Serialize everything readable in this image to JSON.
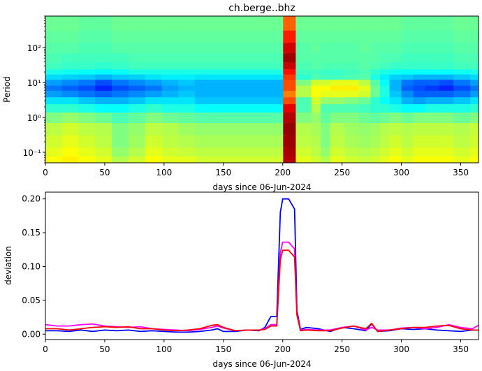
{
  "chart_data": [
    {
      "type": "heatmap",
      "title": "ch.berge..bhz",
      "xlabel": "days since 06-Jun-2024",
      "ylabel": "Period",
      "xlim": [
        0,
        365
      ],
      "ylim": [
        0.05,
        800
      ],
      "y_scale": "log",
      "x_ticks": [
        "0",
        "50",
        "100",
        "150",
        "200",
        "250",
        "300",
        "350"
      ],
      "y_ticks": [
        "10⁻¹",
        "10⁰",
        "10¹",
        "10²"
      ],
      "colormap": "jet",
      "band_periods": [
        0.06,
        0.1,
        0.2,
        0.5,
        1,
        2,
        3,
        5,
        7,
        10,
        15,
        20,
        30,
        50,
        100,
        200,
        500
      ],
      "rows": [
        {
          "period": 0.06,
          "values": [
            0.62,
            0.64,
            0.62,
            0.6,
            0.55,
            0.58,
            0.62,
            0.6,
            0.6,
            0.58,
            0.95,
            0.6,
            0.58,
            0.55,
            0.6,
            0.58,
            0.57,
            0.58,
            0.6,
            0.62,
            0.6,
            0.62,
            0.62,
            0.62,
            0.6,
            0.62
          ]
        },
        {
          "period": 0.1,
          "values": [
            0.6,
            0.62,
            0.6,
            0.58,
            0.52,
            0.55,
            0.6,
            0.58,
            0.57,
            0.56,
            0.96,
            0.58,
            0.56,
            0.52,
            0.58,
            0.56,
            0.55,
            0.56,
            0.58,
            0.6,
            0.58,
            0.6,
            0.6,
            0.6,
            0.58,
            0.6
          ]
        },
        {
          "period": 0.2,
          "values": [
            0.58,
            0.6,
            0.58,
            0.56,
            0.5,
            0.53,
            0.58,
            0.56,
            0.55,
            0.54,
            0.97,
            0.56,
            0.55,
            0.5,
            0.56,
            0.54,
            0.53,
            0.54,
            0.56,
            0.58,
            0.56,
            0.58,
            0.58,
            0.58,
            0.56,
            0.58
          ]
        },
        {
          "period": 0.5,
          "values": [
            0.56,
            0.58,
            0.56,
            0.55,
            0.5,
            0.52,
            0.56,
            0.55,
            0.53,
            0.52,
            0.98,
            0.55,
            0.54,
            0.5,
            0.55,
            0.53,
            0.52,
            0.53,
            0.55,
            0.56,
            0.55,
            0.56,
            0.56,
            0.56,
            0.55,
            0.57
          ]
        },
        {
          "period": 1,
          "values": [
            0.5,
            0.52,
            0.5,
            0.48,
            0.45,
            0.47,
            0.5,
            0.48,
            0.47,
            0.46,
            0.95,
            0.5,
            0.52,
            0.47,
            0.5,
            0.5,
            0.48,
            0.47,
            0.48,
            0.5,
            0.48,
            0.5,
            0.5,
            0.5,
            0.48,
            0.5
          ]
        },
        {
          "period": 2,
          "values": [
            0.42,
            0.42,
            0.4,
            0.38,
            0.38,
            0.4,
            0.42,
            0.4,
            0.4,
            0.38,
            0.9,
            0.45,
            0.55,
            0.45,
            0.45,
            0.45,
            0.44,
            0.42,
            0.42,
            0.4,
            0.38,
            0.38,
            0.4,
            0.4,
            0.4,
            0.42
          ]
        },
        {
          "period": 3,
          "values": [
            0.35,
            0.35,
            0.32,
            0.3,
            0.3,
            0.32,
            0.35,
            0.35,
            0.35,
            0.32,
            0.8,
            0.45,
            0.58,
            0.52,
            0.52,
            0.5,
            0.48,
            0.42,
            0.38,
            0.35,
            0.3,
            0.28,
            0.3,
            0.3,
            0.32,
            0.35
          ]
        },
        {
          "period": 5,
          "values": [
            0.28,
            0.26,
            0.24,
            0.22,
            0.24,
            0.26,
            0.28,
            0.3,
            0.32,
            0.3,
            0.75,
            0.55,
            0.62,
            0.6,
            0.6,
            0.6,
            0.58,
            0.48,
            0.4,
            0.32,
            0.26,
            0.22,
            0.22,
            0.22,
            0.24,
            0.28
          ]
        },
        {
          "period": 7,
          "values": [
            0.24,
            0.22,
            0.2,
            0.16,
            0.2,
            0.22,
            0.24,
            0.28,
            0.3,
            0.3,
            0.8,
            0.55,
            0.62,
            0.62,
            0.64,
            0.64,
            0.6,
            0.48,
            0.4,
            0.3,
            0.22,
            0.2,
            0.18,
            0.16,
            0.2,
            0.24
          ]
        },
        {
          "period": 10,
          "values": [
            0.28,
            0.26,
            0.24,
            0.2,
            0.24,
            0.26,
            0.28,
            0.3,
            0.32,
            0.3,
            0.8,
            0.5,
            0.58,
            0.58,
            0.6,
            0.6,
            0.56,
            0.46,
            0.38,
            0.3,
            0.24,
            0.22,
            0.22,
            0.2,
            0.24,
            0.28
          ]
        },
        {
          "period": 15,
          "values": [
            0.34,
            0.33,
            0.32,
            0.3,
            0.32,
            0.33,
            0.35,
            0.36,
            0.36,
            0.35,
            0.82,
            0.42,
            0.45,
            0.44,
            0.44,
            0.45,
            0.46,
            0.4,
            0.36,
            0.33,
            0.32,
            0.3,
            0.3,
            0.3,
            0.32,
            0.34
          ]
        },
        {
          "period": 20,
          "values": [
            0.4,
            0.39,
            0.38,
            0.37,
            0.38,
            0.4,
            0.4,
            0.4,
            0.4,
            0.4,
            0.86,
            0.44,
            0.44,
            0.43,
            0.43,
            0.44,
            0.45,
            0.42,
            0.4,
            0.39,
            0.38,
            0.38,
            0.38,
            0.38,
            0.39,
            0.4
          ]
        },
        {
          "period": 30,
          "values": [
            0.44,
            0.43,
            0.43,
            0.42,
            0.43,
            0.44,
            0.44,
            0.44,
            0.44,
            0.44,
            0.93,
            0.45,
            0.46,
            0.45,
            0.45,
            0.45,
            0.46,
            0.45,
            0.44,
            0.43,
            0.43,
            0.43,
            0.43,
            0.43,
            0.44,
            0.44
          ]
        },
        {
          "period": 50,
          "values": [
            0.45,
            0.44,
            0.44,
            0.44,
            0.44,
            0.45,
            0.45,
            0.45,
            0.45,
            0.45,
            0.97,
            0.46,
            0.46,
            0.46,
            0.46,
            0.46,
            0.46,
            0.46,
            0.45,
            0.45,
            0.44,
            0.44,
            0.44,
            0.44,
            0.45,
            0.45
          ]
        },
        {
          "period": 100,
          "values": [
            0.46,
            0.46,
            0.45,
            0.45,
            0.46,
            0.46,
            0.46,
            0.46,
            0.46,
            0.46,
            0.92,
            0.46,
            0.47,
            0.46,
            0.46,
            0.46,
            0.47,
            0.46,
            0.46,
            0.46,
            0.45,
            0.45,
            0.45,
            0.45,
            0.46,
            0.46
          ]
        },
        {
          "period": 200,
          "values": [
            0.47,
            0.47,
            0.46,
            0.46,
            0.47,
            0.47,
            0.47,
            0.47,
            0.47,
            0.47,
            0.85,
            0.47,
            0.47,
            0.47,
            0.47,
            0.47,
            0.47,
            0.47,
            0.47,
            0.47,
            0.46,
            0.46,
            0.46,
            0.46,
            0.47,
            0.47
          ]
        },
        {
          "period": 500,
          "values": [
            0.48,
            0.48,
            0.47,
            0.47,
            0.48,
            0.48,
            0.48,
            0.48,
            0.48,
            0.48,
            0.78,
            0.48,
            0.48,
            0.48,
            0.48,
            0.48,
            0.48,
            0.48,
            0.48,
            0.48,
            0.47,
            0.47,
            0.47,
            0.47,
            0.48,
            0.48
          ]
        }
      ],
      "time_days": [
        0,
        14,
        28,
        42,
        56,
        70,
        84,
        98,
        112,
        126,
        203,
        216,
        224,
        232,
        240,
        252,
        264,
        274,
        282,
        290,
        300,
        310,
        320,
        332,
        344,
        358
      ]
    },
    {
      "type": "line",
      "title": "",
      "xlabel": "days since 06-Jun-2024",
      "ylabel": "deviation",
      "xlim": [
        0,
        365
      ],
      "ylim": [
        -0.008,
        0.21
      ],
      "x_ticks": [
        "0",
        "50",
        "100",
        "150",
        "200",
        "250",
        "300",
        "350"
      ],
      "y_ticks": [
        "0.00",
        "0.05",
        "0.10",
        "0.15",
        "0.20"
      ],
      "x": [
        0,
        10,
        20,
        30,
        40,
        50,
        60,
        70,
        80,
        90,
        100,
        110,
        120,
        130,
        140,
        145,
        150,
        160,
        170,
        180,
        185,
        190,
        195,
        198,
        200,
        202,
        205,
        210,
        212,
        215,
        220,
        230,
        240,
        250,
        260,
        270,
        275,
        280,
        290,
        300,
        310,
        320,
        330,
        340,
        350,
        360,
        365
      ],
      "series": [
        {
          "color": "#0000ff",
          "values": [
            0.005,
            0.005,
            0.004,
            0.006,
            0.004,
            0.006,
            0.005,
            0.006,
            0.004,
            0.005,
            0.004,
            0.003,
            0.003,
            0.004,
            0.006,
            0.008,
            0.004,
            0.004,
            0.006,
            0.005,
            0.01,
            0.026,
            0.026,
            0.18,
            0.2,
            0.2,
            0.2,
            0.185,
            0.035,
            0.007,
            0.01,
            0.008,
            0.004,
            0.01,
            0.008,
            0.005,
            0.015,
            0.004,
            0.005,
            0.008,
            0.007,
            0.008,
            0.006,
            0.005,
            0.004,
            0.006,
            0.006
          ]
        },
        {
          "color": "#ff00ff",
          "values": [
            0.014,
            0.012,
            0.012,
            0.014,
            0.015,
            0.012,
            0.011,
            0.01,
            0.011,
            0.008,
            0.007,
            0.006,
            0.005,
            0.007,
            0.01,
            0.012,
            0.009,
            0.005,
            0.006,
            0.006,
            0.008,
            0.014,
            0.014,
            0.12,
            0.136,
            0.136,
            0.136,
            0.126,
            0.03,
            0.006,
            0.007,
            0.006,
            0.006,
            0.01,
            0.012,
            0.006,
            0.01,
            0.006,
            0.006,
            0.009,
            0.01,
            0.008,
            0.01,
            0.014,
            0.01,
            0.008,
            0.013
          ]
        },
        {
          "color": "#ff0000",
          "values": [
            0.008,
            0.008,
            0.006,
            0.008,
            0.01,
            0.011,
            0.01,
            0.011,
            0.008,
            0.008,
            0.006,
            0.005,
            0.006,
            0.008,
            0.013,
            0.014,
            0.01,
            0.005,
            0.006,
            0.006,
            0.007,
            0.012,
            0.012,
            0.11,
            0.124,
            0.124,
            0.124,
            0.114,
            0.028,
            0.005,
            0.006,
            0.005,
            0.005,
            0.009,
            0.012,
            0.008,
            0.016,
            0.004,
            0.006,
            0.008,
            0.01,
            0.01,
            0.012,
            0.013,
            0.008,
            0.006,
            0.006
          ]
        }
      ]
    }
  ]
}
